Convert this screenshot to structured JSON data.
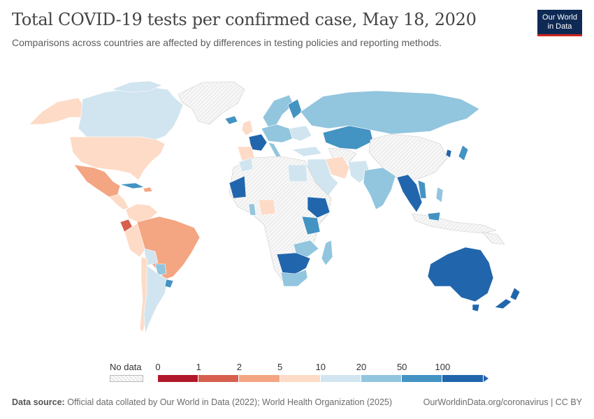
{
  "header": {
    "title": "Total COVID-19 tests per confirmed case, May 18, 2020",
    "subtitle": "Comparisons across countries are affected by differences in testing policies and reporting methods."
  },
  "logo": {
    "line1": "Our World",
    "line2": "in Data"
  },
  "legend": {
    "no_data_label": "No data",
    "ticks": [
      "0",
      "1",
      "2",
      "5",
      "10",
      "20",
      "50",
      "100"
    ],
    "colors": [
      "#b2182b",
      "#d6604d",
      "#f4a582",
      "#fddbc7",
      "#d1e5f0",
      "#92c5de",
      "#4393c3",
      "#2166ac"
    ]
  },
  "footer": {
    "source_label": "Data source:",
    "source_text": "Official data collated by Our World in Data (2022); World Health Organization (2025)",
    "url_license": "OurWorldinData.org/coronavirus | CC BY"
  },
  "colors": {
    "no_data": "#f2f2f2",
    "land_border": "#ffffff",
    "title": "#444444"
  }
}
